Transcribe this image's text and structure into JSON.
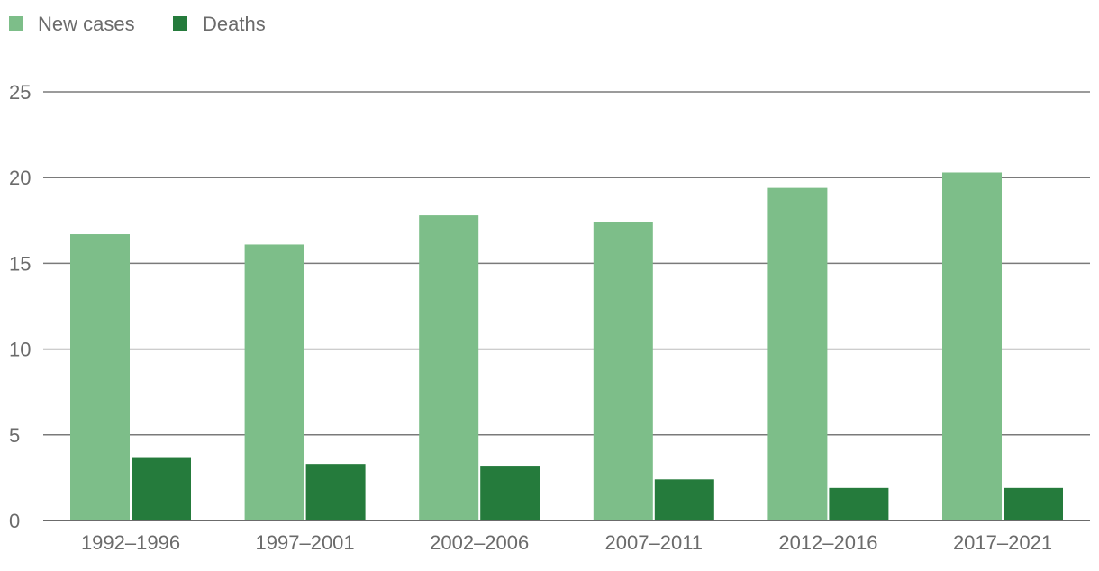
{
  "colors": {
    "new_cases": "#7dbe89",
    "deaths": "#257b3c",
    "grid": "#7a7a7a",
    "axis": "#6b6b6b",
    "text": "#6b6b6b"
  },
  "chart_data": {
    "type": "bar",
    "title": "",
    "xlabel": "",
    "ylabel": "",
    "categories": [
      "1992–1996",
      "1997–2001",
      "2002–2006",
      "2007–2011",
      "2012–2016",
      "2017–2021"
    ],
    "series": [
      {
        "name": "New cases",
        "color_key": "new_cases",
        "values": [
          16.7,
          16.1,
          17.8,
          17.4,
          19.4,
          20.3
        ]
      },
      {
        "name": "Deaths",
        "color_key": "deaths",
        "values": [
          3.7,
          3.3,
          3.2,
          2.4,
          1.9,
          1.9
        ]
      }
    ],
    "ylim": [
      0,
      25
    ],
    "yticks": [
      "0",
      "5",
      "10",
      "15",
      "20",
      "25"
    ],
    "grid": true,
    "legend": "top-left"
  }
}
